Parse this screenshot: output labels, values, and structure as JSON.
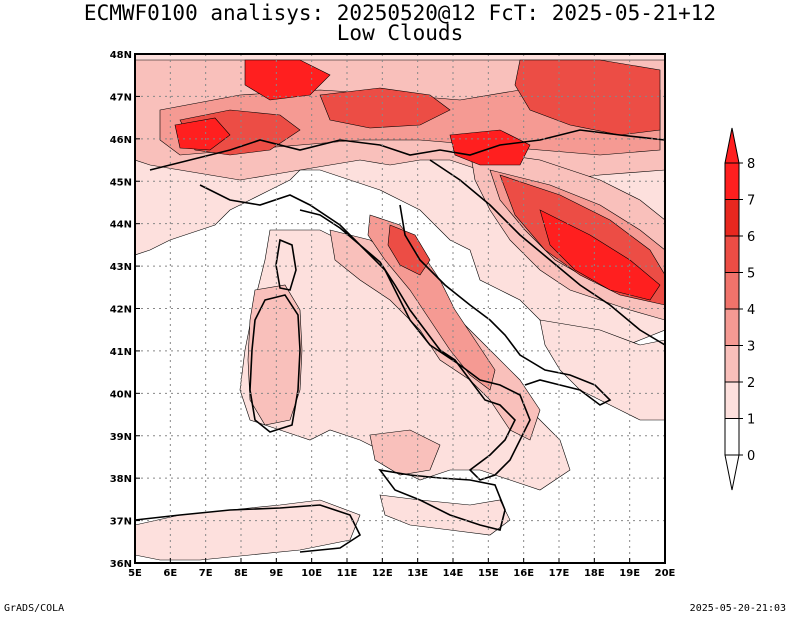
{
  "title_line1": "ECMWF0100 analisys: 20250520@12 FcT: 2025-05-21+12",
  "title_line2": "Low Clouds",
  "footer_left": "GrADS/COLA",
  "footer_right": "2025-05-20-21:03",
  "lon_ticks": [
    "5E",
    "6E",
    "7E",
    "8E",
    "9E",
    "10E",
    "11E",
    "12E",
    "13E",
    "14E",
    "15E",
    "16E",
    "17E",
    "18E",
    "19E",
    "20E"
  ],
  "lat_ticks": [
    "36N",
    "37N",
    "38N",
    "39N",
    "40N",
    "41N",
    "42N",
    "43N",
    "44N",
    "45N",
    "46N",
    "47N",
    "48N"
  ],
  "colorbar": {
    "levels": [
      "0",
      "1",
      "2",
      "3",
      "4",
      "5",
      "6",
      "7",
      "8"
    ],
    "colors": [
      "#ffffff",
      "#fde0dd",
      "#f9c0bb",
      "#f59a93",
      "#f0736b",
      "#ec4d45",
      "#e8281f",
      "#ff1f1f"
    ]
  }
}
